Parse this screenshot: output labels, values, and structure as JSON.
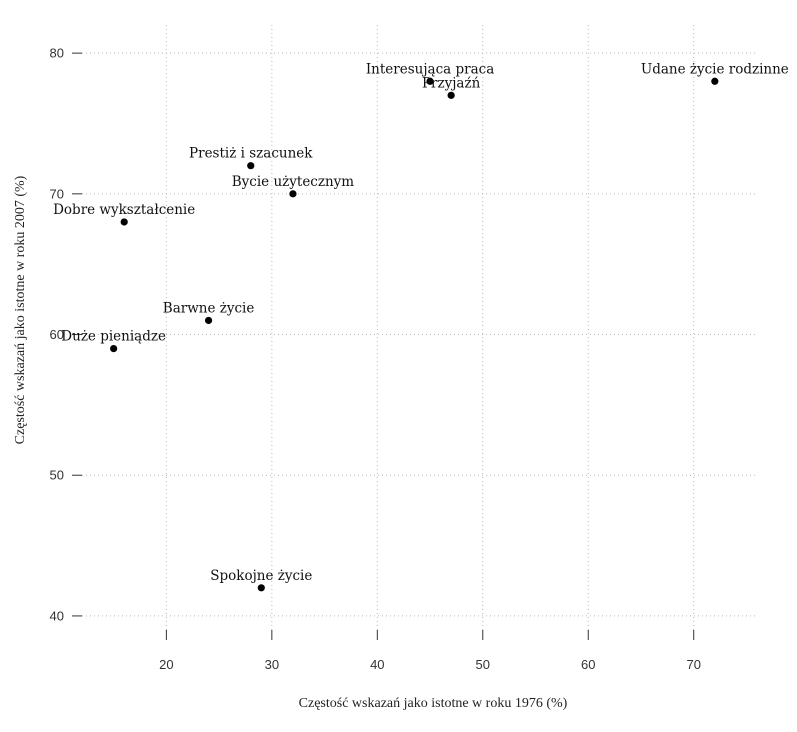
{
  "chart_data": {
    "type": "scatter",
    "xlabel": "Częstość wskazań jako istotne w roku 1976 (%)",
    "ylabel": "Częstość wskazań jako istotne w roku 2007 (%)",
    "xlim": [
      12,
      76
    ],
    "ylim": [
      39,
      82
    ],
    "xticks": [
      20,
      30,
      40,
      50,
      60,
      70
    ],
    "yticks": [
      40,
      50,
      60,
      70,
      80
    ],
    "grid": true,
    "points": [
      {
        "label": "Interesująca praca",
        "x": 45,
        "y": 78
      },
      {
        "label": "Przyjaźń",
        "x": 47,
        "y": 77
      },
      {
        "label": "Udane życie rodzinne",
        "x": 72,
        "y": 78
      },
      {
        "label": "Prestiż i szacunek",
        "x": 28,
        "y": 72
      },
      {
        "label": "Bycie użytecznym",
        "x": 32,
        "y": 70
      },
      {
        "label": "Dobre wykształcenie",
        "x": 16,
        "y": 68
      },
      {
        "label": "Barwne życie",
        "x": 24,
        "y": 61
      },
      {
        "label": "Duże pieniądze",
        "x": 15,
        "y": 59
      },
      {
        "label": "Spokojne życie",
        "x": 29,
        "y": 42
      }
    ]
  }
}
